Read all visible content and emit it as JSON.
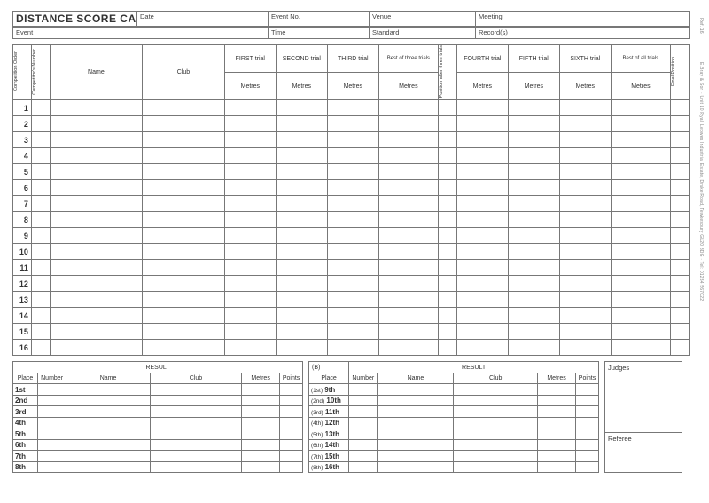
{
  "title": "DISTANCE SCORE CARD",
  "ref": "Ref. 16",
  "side_note": "E.Bray & Son · Unit 10 Ryall Leowes Industrial Estate, Drake Road, Tewkesbury GL20 8DG · Tel: 01234 567022",
  "header_row1": {
    "date": "Date",
    "event_no": "Event No.",
    "venue": "Venue",
    "meeting": "Meeting"
  },
  "header_row2": {
    "event": "Event",
    "time": "Time",
    "standard": "Standard",
    "records": "Record(s)"
  },
  "main": {
    "cols": {
      "comp_order": "Competition Order",
      "comp_number": "Competitor's Number",
      "name": "Name",
      "club": "Club",
      "first": "FIRST trial",
      "second": "SECOND trial",
      "third": "THIRD trial",
      "best3": "Best of three trials",
      "pos3": "Position after three trials",
      "fourth": "FOURTH trial",
      "fifth": "FIFTH trial",
      "sixth": "SIXTH trial",
      "bestall": "Best of all trials",
      "final_pos": "Final Position",
      "metres": "Metres"
    },
    "rows": [
      "1",
      "2",
      "3",
      "4",
      "5",
      "6",
      "7",
      "8",
      "9",
      "10",
      "11",
      "12",
      "13",
      "14",
      "15",
      "16"
    ]
  },
  "result": {
    "title": "RESULT",
    "b_label": "(B)",
    "cols": {
      "place": "Place",
      "number": "Number",
      "name": "Name",
      "club": "Club",
      "metres": "Metres",
      "points": "Points"
    },
    "places_a": [
      "1st",
      "2nd",
      "3rd",
      "4th",
      "5th",
      "6th",
      "7th",
      "8th"
    ],
    "places_b_prefix": [
      "(1st)",
      "(2nd)",
      "(3rd)",
      "(4th)",
      "(5th)",
      "(6th)",
      "(7th)",
      "(8th)"
    ],
    "places_b_main": [
      "9th",
      "10th",
      "11th",
      "12th",
      "13th",
      "14th",
      "15th",
      "16th"
    ]
  },
  "judges": {
    "judges": "Judges",
    "referee": "Referee"
  },
  "style": {
    "border_color": "#777",
    "text_color": "#333",
    "bg": "#ffffff"
  }
}
